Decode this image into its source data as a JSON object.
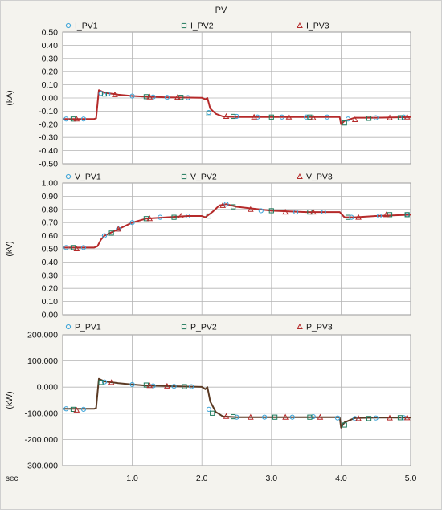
{
  "title": "PV",
  "x_unit_label": "sec",
  "x_ticks": [
    "1.0",
    "2.0",
    "3.0",
    "4.0",
    "5.0"
  ],
  "colors": {
    "background": "#f4f3ee",
    "plot_bg": "#ffffff",
    "grid": "#b4b4b4",
    "series1": "#3ba3d8",
    "series2": "#1f7a5c",
    "series3": "#b52a2a",
    "power_line": "#5b3a24"
  },
  "chart_data": [
    {
      "type": "line",
      "ylabel": "(kA)",
      "ylim": [
        -0.5,
        0.5
      ],
      "yticks": [
        "0.50",
        "0.40",
        "0.30",
        "0.20",
        "0.10",
        "0.00",
        "-0.10",
        "-0.20",
        "-0.30",
        "-0.40",
        "-0.50"
      ],
      "xlim": [
        0.0,
        5.0
      ],
      "grid": true,
      "legend": [
        {
          "name": "I_PV1",
          "marker": "circle"
        },
        {
          "name": "I_PV2",
          "marker": "square"
        },
        {
          "name": "I_PV3",
          "marker": "triangle"
        }
      ],
      "x": [
        0.0,
        0.45,
        0.48,
        0.52,
        0.6,
        0.8,
        1.0,
        1.2,
        1.5,
        1.8,
        2.0,
        2.05,
        2.08,
        2.12,
        2.2,
        2.3,
        2.5,
        3.0,
        3.5,
        3.98,
        4.0,
        4.05,
        4.2,
        4.5,
        5.0
      ],
      "series": [
        {
          "name": "I_PV1",
          "values": [
            -0.16,
            -0.16,
            -0.155,
            0.06,
            0.04,
            0.025,
            0.015,
            0.01,
            0.005,
            0.003,
            0.002,
            -0.01,
            0.0,
            -0.08,
            -0.12,
            -0.14,
            -0.145,
            -0.145,
            -0.145,
            -0.145,
            -0.2,
            -0.175,
            -0.15,
            -0.15,
            -0.145
          ]
        },
        {
          "name": "I_PV2",
          "values": [
            -0.16,
            -0.16,
            -0.155,
            0.06,
            0.04,
            0.025,
            0.015,
            0.01,
            0.005,
            0.003,
            0.002,
            -0.01,
            0.0,
            -0.08,
            -0.12,
            -0.14,
            -0.145,
            -0.145,
            -0.145,
            -0.145,
            -0.2,
            -0.175,
            -0.15,
            -0.15,
            -0.145
          ]
        },
        {
          "name": "I_PV3",
          "values": [
            -0.16,
            -0.16,
            -0.155,
            0.06,
            0.04,
            0.025,
            0.015,
            0.01,
            0.005,
            0.003,
            0.002,
            -0.01,
            0.0,
            -0.08,
            -0.12,
            -0.14,
            -0.145,
            -0.145,
            -0.145,
            -0.145,
            -0.2,
            -0.175,
            -0.15,
            -0.15,
            -0.145
          ]
        }
      ],
      "markers": {
        "I_PV1": [
          [
            0.05,
            -0.16
          ],
          [
            0.3,
            -0.16
          ],
          [
            0.55,
            0.035
          ],
          [
            0.65,
            0.03
          ],
          [
            1.0,
            0.015
          ],
          [
            1.3,
            0.008
          ],
          [
            1.5,
            0.005
          ],
          [
            1.8,
            0.003
          ],
          [
            2.1,
            -0.11
          ],
          [
            2.5,
            -0.14
          ],
          [
            2.8,
            -0.145
          ],
          [
            3.15,
            -0.145
          ],
          [
            3.5,
            -0.145
          ],
          [
            3.8,
            -0.145
          ],
          [
            4.1,
            -0.16
          ],
          [
            4.5,
            -0.15
          ],
          [
            4.9,
            -0.145
          ]
        ],
        "I_PV2": [
          [
            0.15,
            -0.16
          ],
          [
            0.6,
            0.03
          ],
          [
            1.2,
            0.01
          ],
          [
            1.7,
            0.005
          ],
          [
            2.1,
            -0.12
          ],
          [
            2.45,
            -0.14
          ],
          [
            3.0,
            -0.145
          ],
          [
            3.55,
            -0.145
          ],
          [
            4.05,
            -0.19
          ],
          [
            4.4,
            -0.155
          ],
          [
            4.85,
            -0.15
          ]
        ],
        "I_PV3": [
          [
            0.2,
            -0.16
          ],
          [
            0.75,
            0.025
          ],
          [
            1.25,
            0.008
          ],
          [
            1.65,
            0.005
          ],
          [
            2.35,
            -0.14
          ],
          [
            2.75,
            -0.145
          ],
          [
            3.25,
            -0.145
          ],
          [
            3.6,
            -0.15
          ],
          [
            4.2,
            -0.165
          ],
          [
            4.7,
            -0.15
          ],
          [
            4.95,
            -0.145
          ]
        ]
      }
    },
    {
      "type": "line",
      "ylabel": "(kV)",
      "ylim": [
        0.0,
        1.0
      ],
      "yticks": [
        "1.00",
        "0.90",
        "0.80",
        "0.70",
        "0.60",
        "0.50",
        "0.40",
        "0.30",
        "0.20",
        "0.10",
        "0.00"
      ],
      "xlim": [
        0.0,
        5.0
      ],
      "grid": true,
      "legend": [
        {
          "name": "V_PV1",
          "marker": "circle"
        },
        {
          "name": "V_PV2",
          "marker": "square"
        },
        {
          "name": "V_PV3",
          "marker": "triangle"
        }
      ],
      "x": [
        0.0,
        0.45,
        0.5,
        0.55,
        0.6,
        0.8,
        1.0,
        1.2,
        1.5,
        1.8,
        2.0,
        2.05,
        2.15,
        2.25,
        2.35,
        2.5,
        3.0,
        3.5,
        3.98,
        4.05,
        4.2,
        4.5,
        5.0
      ],
      "series": [
        {
          "name": "V_PV1",
          "values": [
            0.51,
            0.51,
            0.52,
            0.57,
            0.6,
            0.65,
            0.7,
            0.73,
            0.74,
            0.75,
            0.75,
            0.74,
            0.78,
            0.83,
            0.84,
            0.82,
            0.79,
            0.78,
            0.78,
            0.74,
            0.74,
            0.75,
            0.76
          ]
        },
        {
          "name": "V_PV2",
          "values": [
            0.51,
            0.51,
            0.52,
            0.57,
            0.6,
            0.65,
            0.7,
            0.73,
            0.74,
            0.75,
            0.75,
            0.74,
            0.78,
            0.83,
            0.84,
            0.82,
            0.79,
            0.78,
            0.78,
            0.74,
            0.74,
            0.75,
            0.76
          ]
        },
        {
          "name": "V_PV3",
          "values": [
            0.51,
            0.51,
            0.52,
            0.57,
            0.6,
            0.65,
            0.7,
            0.73,
            0.74,
            0.75,
            0.75,
            0.74,
            0.78,
            0.83,
            0.84,
            0.82,
            0.79,
            0.78,
            0.78,
            0.74,
            0.74,
            0.75,
            0.76
          ]
        }
      ],
      "markers": {
        "V_PV1": [
          [
            0.05,
            0.51
          ],
          [
            0.3,
            0.51
          ],
          [
            0.6,
            0.6
          ],
          [
            0.8,
            0.65
          ],
          [
            1.0,
            0.7
          ],
          [
            1.4,
            0.74
          ],
          [
            1.8,
            0.75
          ],
          [
            2.35,
            0.84
          ],
          [
            2.85,
            0.79
          ],
          [
            3.35,
            0.78
          ],
          [
            3.75,
            0.78
          ],
          [
            4.15,
            0.74
          ],
          [
            4.55,
            0.75
          ],
          [
            4.95,
            0.76
          ]
        ],
        "V_PV2": [
          [
            0.15,
            0.51
          ],
          [
            0.7,
            0.62
          ],
          [
            1.2,
            0.73
          ],
          [
            1.6,
            0.74
          ],
          [
            2.1,
            0.75
          ],
          [
            2.45,
            0.82
          ],
          [
            3.0,
            0.79
          ],
          [
            3.55,
            0.78
          ],
          [
            4.1,
            0.74
          ],
          [
            4.7,
            0.76
          ],
          [
            4.95,
            0.76
          ]
        ],
        "V_PV3": [
          [
            0.2,
            0.5
          ],
          [
            0.8,
            0.65
          ],
          [
            1.25,
            0.73
          ],
          [
            1.7,
            0.75
          ],
          [
            2.3,
            0.83
          ],
          [
            2.7,
            0.8
          ],
          [
            3.2,
            0.78
          ],
          [
            3.6,
            0.78
          ],
          [
            4.25,
            0.74
          ],
          [
            4.65,
            0.76
          ]
        ]
      }
    },
    {
      "type": "line",
      "ylabel": "(kW)",
      "ylim": [
        -300.0,
        200.0
      ],
      "yticks": [
        "200.000",
        "100.000",
        "0.000",
        "-100.000",
        "-200.000",
        "-300.000"
      ],
      "xlim": [
        0.0,
        5.0
      ],
      "grid": true,
      "legend": [
        {
          "name": "P_PV1",
          "marker": "circle"
        },
        {
          "name": "P_PV2",
          "marker": "square"
        },
        {
          "name": "P_PV3",
          "marker": "triangle"
        }
      ],
      "x": [
        0.0,
        0.45,
        0.48,
        0.52,
        0.6,
        0.8,
        1.0,
        1.2,
        1.5,
        1.8,
        2.0,
        2.05,
        2.08,
        2.12,
        2.2,
        2.3,
        2.5,
        3.0,
        3.5,
        3.98,
        4.0,
        4.05,
        4.2,
        4.5,
        5.0
      ],
      "series": [
        {
          "name": "P_PV1",
          "values": [
            -83,
            -83,
            -80,
            32,
            22,
            15,
            10,
            6,
            4,
            2,
            1,
            -8,
            0,
            -55,
            -95,
            -112,
            -115,
            -115,
            -115,
            -115,
            -155,
            -135,
            -118,
            -117,
            -117
          ]
        },
        {
          "name": "P_PV2",
          "values": [
            -83,
            -83,
            -80,
            32,
            22,
            15,
            10,
            6,
            4,
            2,
            1,
            -8,
            0,
            -55,
            -95,
            -112,
            -115,
            -115,
            -115,
            -115,
            -155,
            -135,
            -118,
            -117,
            -117
          ]
        },
        {
          "name": "P_PV3",
          "values": [
            -83,
            -83,
            -80,
            32,
            22,
            15,
            10,
            6,
            4,
            2,
            1,
            -8,
            0,
            -55,
            -95,
            -112,
            -115,
            -115,
            -115,
            -115,
            -155,
            -135,
            -118,
            -117,
            -117
          ]
        }
      ],
      "markers": {
        "P_PV1": [
          [
            0.05,
            -83
          ],
          [
            0.3,
            -85
          ],
          [
            0.6,
            20
          ],
          [
            1.0,
            10
          ],
          [
            1.3,
            5
          ],
          [
            1.6,
            3
          ],
          [
            1.85,
            2
          ],
          [
            2.1,
            -85
          ],
          [
            2.5,
            -115
          ],
          [
            2.9,
            -115
          ],
          [
            3.3,
            -115
          ],
          [
            3.6,
            -113
          ],
          [
            3.95,
            -118
          ],
          [
            4.2,
            -120
          ],
          [
            4.5,
            -118
          ],
          [
            4.9,
            -117
          ]
        ],
        "P_PV2": [
          [
            0.15,
            -85
          ],
          [
            0.55,
            18
          ],
          [
            1.2,
            8
          ],
          [
            1.75,
            2
          ],
          [
            2.15,
            -100
          ],
          [
            2.45,
            -113
          ],
          [
            3.05,
            -115
          ],
          [
            3.55,
            -115
          ],
          [
            4.05,
            -145
          ],
          [
            4.4,
            -120
          ],
          [
            4.85,
            -117
          ]
        ],
        "P_PV3": [
          [
            0.2,
            -88
          ],
          [
            0.7,
            18
          ],
          [
            1.25,
            6
          ],
          [
            1.5,
            4
          ],
          [
            2.35,
            -112
          ],
          [
            2.7,
            -115
          ],
          [
            3.2,
            -115
          ],
          [
            3.7,
            -115
          ],
          [
            4.25,
            -120
          ],
          [
            4.7,
            -118
          ],
          [
            4.95,
            -117
          ]
        ]
      }
    }
  ]
}
